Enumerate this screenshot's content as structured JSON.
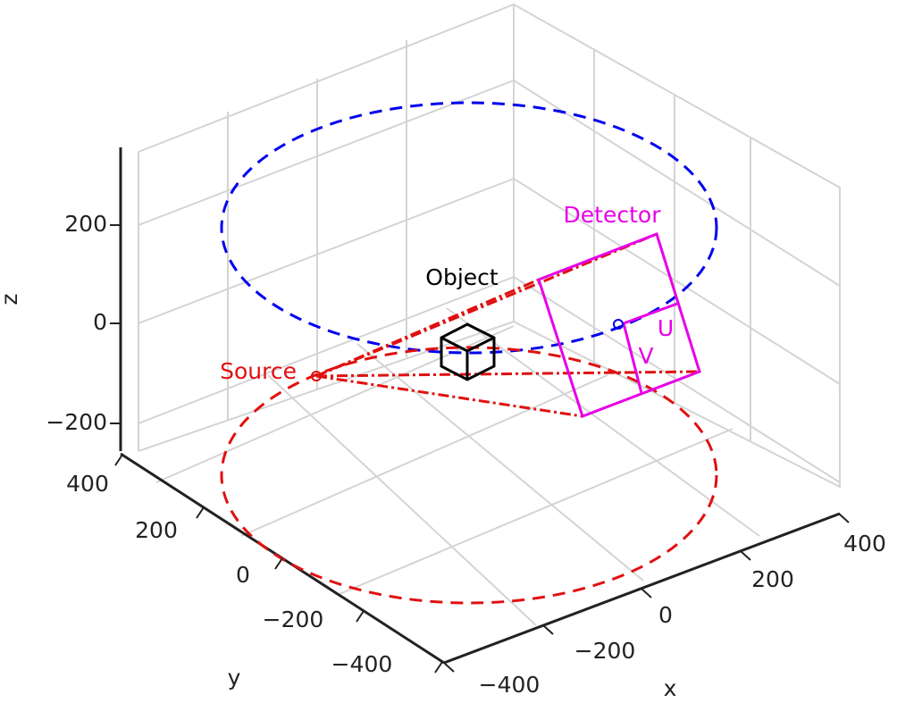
{
  "axes": {
    "x": {
      "label": "x",
      "ticks": [
        "−400",
        "−200",
        "0",
        "200",
        "400"
      ]
    },
    "y": {
      "label": "y",
      "ticks": [
        "400",
        "200",
        "0",
        "−200",
        "−400"
      ]
    },
    "z": {
      "label": "z",
      "ticks": [
        "200",
        "0",
        "−200"
      ]
    }
  },
  "annotations": {
    "source": "Source",
    "object": "Object",
    "detector": "Detector",
    "u": "U",
    "v": "V"
  }
}
